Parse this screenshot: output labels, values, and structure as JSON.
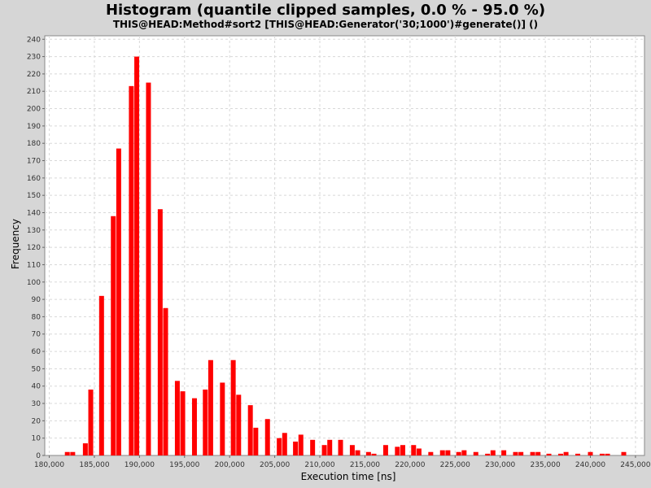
{
  "chart_data": {
    "type": "bar",
    "title": "Histogram (quantile clipped samples, 0.0 % - 95.0 %)",
    "subtitle": "THIS@HEAD:Method#sort2 [THIS@HEAD:Generator('30;1000')#generate()] ()",
    "xlabel": "Execution time [ns]",
    "ylabel": "Frequency",
    "xlim": [
      179500,
      246000
    ],
    "ylim": [
      0,
      242
    ],
    "x_ticks": [
      180000,
      185000,
      190000,
      195000,
      200000,
      205000,
      210000,
      215000,
      220000,
      225000,
      230000,
      235000,
      240000,
      245000
    ],
    "x_tick_labels": [
      "180,000",
      "185,000",
      "190,000",
      "195,000",
      "200,000",
      "205,000",
      "210,000",
      "215,000",
      "220,000",
      "225,000",
      "230,000",
      "235,000",
      "240,000",
      "245,000"
    ],
    "y_ticks": [
      0,
      10,
      20,
      30,
      40,
      50,
      60,
      70,
      80,
      90,
      100,
      110,
      120,
      130,
      140,
      150,
      160,
      170,
      180,
      190,
      200,
      210,
      220,
      230,
      240
    ],
    "y_tick_labels": [
      "0",
      "10",
      "20",
      "30",
      "40",
      "50",
      "60",
      "70",
      "80",
      "90",
      "100",
      "110",
      "120",
      "130",
      "140",
      "150",
      "160",
      "170",
      "180",
      "190",
      "200",
      "210",
      "220",
      "230",
      "240"
    ],
    "grid": true,
    "bar_color": "#ff0000",
    "plot_background": "#ffffff",
    "bars": [
      {
        "x": 182000,
        "y": 2
      },
      {
        "x": 182600,
        "y": 2
      },
      {
        "x": 184000,
        "y": 7
      },
      {
        "x": 184600,
        "y": 38
      },
      {
        "x": 185800,
        "y": 92
      },
      {
        "x": 187100,
        "y": 138
      },
      {
        "x": 187700,
        "y": 177
      },
      {
        "x": 189100,
        "y": 213
      },
      {
        "x": 189700,
        "y": 230
      },
      {
        "x": 191000,
        "y": 215
      },
      {
        "x": 192300,
        "y": 142
      },
      {
        "x": 192900,
        "y": 85
      },
      {
        "x": 194200,
        "y": 43
      },
      {
        "x": 194800,
        "y": 37
      },
      {
        "x": 196100,
        "y": 33
      },
      {
        "x": 197300,
        "y": 38
      },
      {
        "x": 197900,
        "y": 55
      },
      {
        "x": 199200,
        "y": 42
      },
      {
        "x": 200400,
        "y": 55
      },
      {
        "x": 201000,
        "y": 35
      },
      {
        "x": 202300,
        "y": 29
      },
      {
        "x": 202900,
        "y": 16
      },
      {
        "x": 204200,
        "y": 21
      },
      {
        "x": 205500,
        "y": 10
      },
      {
        "x": 206100,
        "y": 13
      },
      {
        "x": 207300,
        "y": 8
      },
      {
        "x": 207900,
        "y": 12
      },
      {
        "x": 209200,
        "y": 9
      },
      {
        "x": 210500,
        "y": 6
      },
      {
        "x": 211100,
        "y": 9
      },
      {
        "x": 212300,
        "y": 9
      },
      {
        "x": 213600,
        "y": 6
      },
      {
        "x": 214200,
        "y": 3
      },
      {
        "x": 215400,
        "y": 2
      },
      {
        "x": 216000,
        "y": 1
      },
      {
        "x": 217300,
        "y": 6
      },
      {
        "x": 218600,
        "y": 5
      },
      {
        "x": 219200,
        "y": 6
      },
      {
        "x": 220400,
        "y": 6
      },
      {
        "x": 221000,
        "y": 4
      },
      {
        "x": 222300,
        "y": 2
      },
      {
        "x": 223600,
        "y": 3
      },
      {
        "x": 224200,
        "y": 3
      },
      {
        "x": 225400,
        "y": 2
      },
      {
        "x": 226000,
        "y": 3
      },
      {
        "x": 227300,
        "y": 2
      },
      {
        "x": 228600,
        "y": 1
      },
      {
        "x": 229200,
        "y": 3
      },
      {
        "x": 230400,
        "y": 3
      },
      {
        "x": 231700,
        "y": 2
      },
      {
        "x": 232300,
        "y": 2
      },
      {
        "x": 233600,
        "y": 2
      },
      {
        "x": 234200,
        "y": 2
      },
      {
        "x": 235400,
        "y": 1
      },
      {
        "x": 236700,
        "y": 1
      },
      {
        "x": 237300,
        "y": 2
      },
      {
        "x": 238600,
        "y": 1
      },
      {
        "x": 240000,
        "y": 2
      },
      {
        "x": 241300,
        "y": 1
      },
      {
        "x": 241900,
        "y": 1
      },
      {
        "x": 243700,
        "y": 2
      }
    ]
  }
}
